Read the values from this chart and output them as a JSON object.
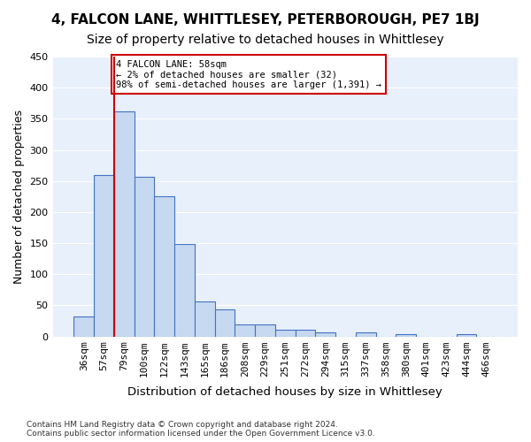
{
  "title": "4, FALCON LANE, WHITTLESEY, PETERBOROUGH, PE7 1BJ",
  "subtitle": "Size of property relative to detached houses in Whittlesey",
  "xlabel": "Distribution of detached houses by size in Whittlesey",
  "ylabel": "Number of detached properties",
  "footnote": "Contains HM Land Registry data © Crown copyright and database right 2024.\nContains public sector information licensed under the Open Government Licence v3.0.",
  "bin_labels": [
    "36sqm",
    "57sqm",
    "79sqm",
    "100sqm",
    "122sqm",
    "143sqm",
    "165sqm",
    "186sqm",
    "208sqm",
    "229sqm",
    "251sqm",
    "272sqm",
    "294sqm",
    "315sqm",
    "337sqm",
    "358sqm",
    "380sqm",
    "401sqm",
    "423sqm",
    "444sqm",
    "466sqm"
  ],
  "bar_values": [
    32,
    260,
    362,
    256,
    225,
    148,
    56,
    43,
    19,
    19,
    10,
    10,
    7,
    0,
    6,
    0,
    4,
    0,
    0,
    4,
    0
  ],
  "bar_color": "#c6d9f0",
  "bar_edge_color": "#4472c4",
  "vline_x": 1.5,
  "vline_color": "#cc0000",
  "annotation_text": "4 FALCON LANE: 58sqm\n← 2% of detached houses are smaller (32)\n98% of semi-detached houses are larger (1,391) →",
  "annotation_box_color": "#cc0000",
  "ylim": [
    0,
    450
  ],
  "yticks": [
    0,
    50,
    100,
    150,
    200,
    250,
    300,
    350,
    400,
    450
  ],
  "background_color": "#e8f0fb",
  "grid_color": "#ffffff",
  "title_fontsize": 11,
  "subtitle_fontsize": 10,
  "axis_label_fontsize": 9,
  "tick_fontsize": 8
}
